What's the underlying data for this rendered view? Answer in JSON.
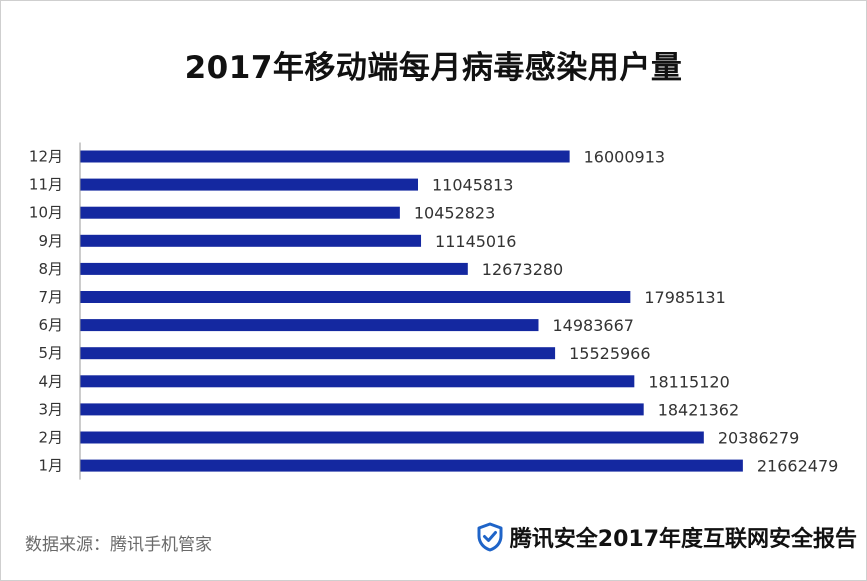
{
  "chart_data": {
    "type": "bar",
    "orientation": "horizontal",
    "title": "2017年移动端每月病毒感染用户量",
    "categories": [
      "1月",
      "2月",
      "3月",
      "4月",
      "5月",
      "6月",
      "7月",
      "8月",
      "9月",
      "10月",
      "11月",
      "12月"
    ],
    "values": [
      21662479,
      20386279,
      18421362,
      18115120,
      15525966,
      14983667,
      17985131,
      12673280,
      11145016,
      10452823,
      11045813,
      16000913
    ],
    "data_labels": [
      "21662479",
      "20386279",
      "18421362",
      "18115120",
      "15525966",
      "14983667",
      "17985131",
      "12673280",
      "11145016",
      "10452823",
      "11045813",
      "16000913"
    ],
    "xlabel": "",
    "ylabel": "",
    "xlim": [
      0,
      25000000
    ],
    "grid": false,
    "legend": "none",
    "bar_color": "#1428a0"
  },
  "footer": {
    "source": "数据来源：腾讯手机管家",
    "brand": "腾讯安全2017年度互联网安全报告",
    "brand_icon": "shield-check-icon",
    "brand_color": "#1f64c8"
  }
}
